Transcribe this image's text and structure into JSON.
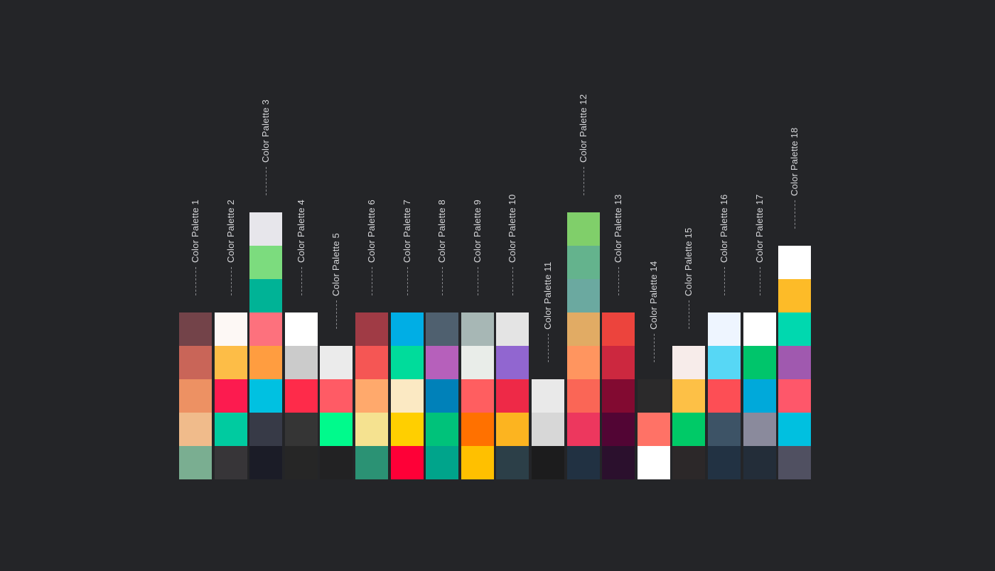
{
  "palettes": [
    {
      "name": "Color Palette 1",
      "colors": [
        "#734349",
        "#c96558",
        "#ed9163",
        "#f0bb8b",
        "#7aae91"
      ]
    },
    {
      "name": "Color Palette 2",
      "colors": [
        "#fdf8f5",
        "#fdbd47",
        "#fc1b4f",
        "#00cba0",
        "#373538"
      ]
    },
    {
      "name": "Color Palette 3",
      "colors": [
        "#e7e6eb",
        "#7cdc7e",
        "#00b396",
        "#fd717d",
        "#ff9d40",
        "#00c1e1",
        "#373a47",
        "#1b1c27"
      ]
    },
    {
      "name": "Color Palette 4",
      "colors": [
        "#ffffff",
        "#cbcbcb",
        "#fe2b4a",
        "#353535",
        "#262626"
      ]
    },
    {
      "name": "Color Palette 5",
      "colors": [
        "#ebebeb",
        "#ff5b65",
        "#00fa8c",
        "#222223"
      ]
    },
    {
      "name": "Color Palette 6",
      "colors": [
        "#a03b45",
        "#f55654",
        "#ffa96c",
        "#f5e290",
        "#2b9274"
      ]
    },
    {
      "name": "Color Palette 7",
      "colors": [
        "#00aee5",
        "#00dc9b",
        "#fbe9c3",
        "#ffcf00",
        "#fe0037"
      ]
    },
    {
      "name": "Color Palette 8",
      "colors": [
        "#4f606f",
        "#b660bb",
        "#0081b9",
        "#00c27a",
        "#00a48b"
      ]
    },
    {
      "name": "Color Palette 9",
      "colors": [
        "#a7b7b5",
        "#e9ede9",
        "#ff5e60",
        "#ff7100",
        "#ffc000"
      ]
    },
    {
      "name": "Color Palette 10",
      "colors": [
        "#e4e4e4",
        "#9166d0",
        "#ee2947",
        "#fcb420",
        "#2c3f48"
      ]
    },
    {
      "name": "Color Palette 11",
      "colors": [
        "#e9e9e9",
        "#d7d7d7",
        "#1c1c1d"
      ]
    },
    {
      "name": "Color Palette 12",
      "colors": [
        "#80cf6a",
        "#64b38d",
        "#6ba9a0",
        "#e1ab64",
        "#ff955f",
        "#fa6656",
        "#ed375e",
        "#213142"
      ]
    },
    {
      "name": "Color Palette 13",
      "colors": [
        "#ec443d",
        "#cc283f",
        "#820a31",
        "#520534",
        "#2b102d"
      ]
    },
    {
      "name": "Color Palette 14",
      "colors": [
        "#2b2a2b",
        "#ff7266",
        "#ffffff"
      ]
    },
    {
      "name": "Color Palette 15",
      "colors": [
        "#f7ecea",
        "#fdc046",
        "#00ca67",
        "#2c2829"
      ]
    },
    {
      "name": "Color Palette 16",
      "colors": [
        "#eef5ff",
        "#57d7f5",
        "#fd4e55",
        "#3d5366",
        "#223243"
      ]
    },
    {
      "name": "Color Palette 17",
      "colors": [
        "#ffffff",
        "#00c56b",
        "#00a9da",
        "#8a8a9c",
        "#232d39"
      ]
    },
    {
      "name": "Color Palette 18",
      "colors": [
        "#ffffff",
        "#fdbb28",
        "#00d8af",
        "#a059af",
        "#fe576a",
        "#00c0e0",
        "#505061"
      ]
    }
  ],
  "background": "#242528"
}
